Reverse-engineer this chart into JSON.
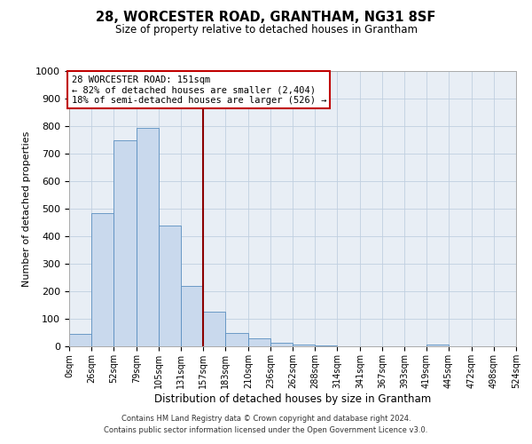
{
  "title": "28, WORCESTER ROAD, GRANTHAM, NG31 8SF",
  "subtitle": "Size of property relative to detached houses in Grantham",
  "xlabel": "Distribution of detached houses by size in Grantham",
  "ylabel": "Number of detached properties",
  "bin_edges": [
    0,
    26,
    52,
    79,
    105,
    131,
    157,
    183,
    210,
    236,
    262,
    288,
    314,
    341,
    367,
    393,
    419,
    445,
    472,
    498,
    524
  ],
  "bar_heights": [
    45,
    485,
    750,
    795,
    440,
    220,
    125,
    50,
    28,
    13,
    8,
    3,
    0,
    0,
    0,
    0,
    8,
    0,
    0,
    0
  ],
  "bar_color": "#c9d9ed",
  "bar_edge_color": "#5a8fc0",
  "grid_color": "#c0cfe0",
  "background_color": "#e8eef5",
  "vline_x": 157,
  "vline_color": "#8b0000",
  "annotation_title": "28 WORCESTER ROAD: 151sqm",
  "annotation_line1": "← 82% of detached houses are smaller (2,404)",
  "annotation_line2": "18% of semi-detached houses are larger (526) →",
  "annotation_box_color": "#ffffff",
  "annotation_border_color": "#c00000",
  "ylim": [
    0,
    1000
  ],
  "yticks": [
    0,
    100,
    200,
    300,
    400,
    500,
    600,
    700,
    800,
    900,
    1000
  ],
  "xtick_labels": [
    "0sqm",
    "26sqm",
    "52sqm",
    "79sqm",
    "105sqm",
    "131sqm",
    "157sqm",
    "183sqm",
    "210sqm",
    "236sqm",
    "262sqm",
    "288sqm",
    "314sqm",
    "341sqm",
    "367sqm",
    "393sqm",
    "419sqm",
    "445sqm",
    "472sqm",
    "498sqm",
    "524sqm"
  ],
  "footer_line1": "Contains HM Land Registry data © Crown copyright and database right 2024.",
  "footer_line2": "Contains public sector information licensed under the Open Government Licence v3.0."
}
